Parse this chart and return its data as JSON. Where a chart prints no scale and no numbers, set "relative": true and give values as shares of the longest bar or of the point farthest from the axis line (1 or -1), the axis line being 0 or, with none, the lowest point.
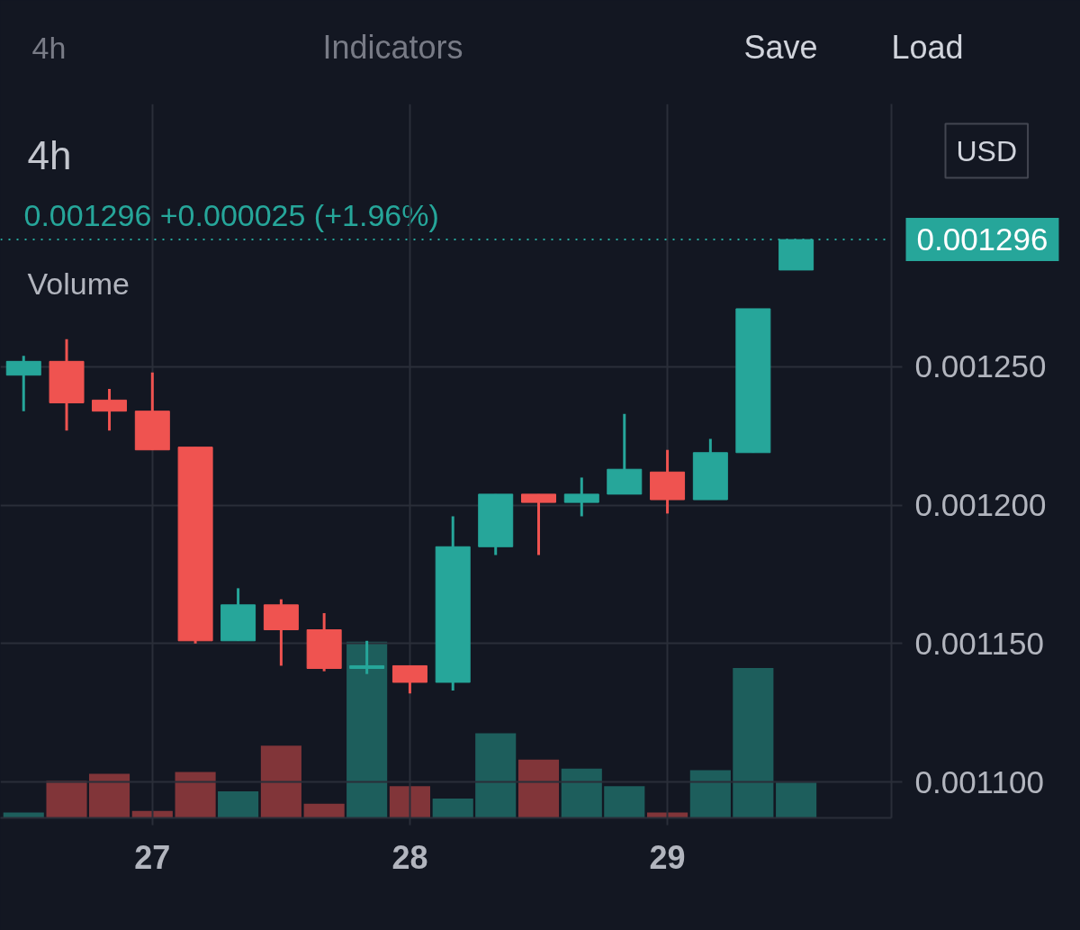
{
  "chart_data": [
    {
      "type": "candlestick",
      "title": "4h",
      "subtitle": "0.001296 +0.000025 (+1.96%)",
      "annotations": [
        "4h",
        "Indicators",
        "Save",
        "Load",
        "USD"
      ],
      "x": [
        26.5,
        26.667,
        26.833,
        27,
        27.167,
        27.333,
        27.5,
        27.667,
        27.833,
        28,
        28.167,
        28.333,
        28.5,
        28.667,
        28.833,
        29,
        29.167,
        29.333,
        29.5
      ],
      "ohlc": [
        [
          0.001247,
          0.001254,
          0.001234,
          0.001252
        ],
        [
          0.001252,
          0.00126,
          0.001227,
          0.001237
        ],
        [
          0.001238,
          0.001242,
          0.001227,
          0.001234
        ],
        [
          0.001234,
          0.001248,
          0.00122,
          0.00122
        ],
        [
          0.001221,
          0.001221,
          0.00115,
          0.001151
        ],
        [
          0.001151,
          0.00117,
          0.001151,
          0.001164
        ],
        [
          0.001164,
          0.001166,
          0.001142,
          0.001155
        ],
        [
          0.001155,
          0.001161,
          0.00114,
          0.001141
        ],
        [
          0.001141,
          0.001151,
          0.001139,
          0.001142
        ],
        [
          0.001142,
          0.001142,
          0.001132,
          0.001136
        ],
        [
          0.001136,
          0.001196,
          0.001133,
          0.001185
        ],
        [
          0.001185,
          0.001204,
          0.001182,
          0.001204
        ],
        [
          0.001204,
          0.001204,
          0.001182,
          0.001201
        ],
        [
          0.001201,
          0.00121,
          0.001196,
          0.001204
        ],
        [
          0.001204,
          0.001233,
          0.001204,
          0.001213
        ],
        [
          0.001212,
          0.00122,
          0.001197,
          0.001202
        ],
        [
          0.001202,
          0.001224,
          0.001202,
          0.001219
        ],
        [
          0.001219,
          0.001271,
          0.001219,
          0.001271
        ],
        [
          0.001285,
          0.001296,
          0.001285,
          0.001296
        ]
      ],
      "colors": [
        "#26a69a",
        "#ef5350",
        "#ef5350",
        "#ef5350",
        "#ef5350",
        "#26a69a",
        "#ef5350",
        "#ef5350",
        "#26a69a",
        "#ef5350",
        "#26a69a",
        "#26a69a",
        "#ef5350",
        "#26a69a",
        "#26a69a",
        "#ef5350",
        "#26a69a",
        "#26a69a",
        "#26a69a"
      ],
      "ref_lines": [
        {
          "axis": "y",
          "value": 0.001296,
          "label": "0.001296",
          "color": "#26a69a",
          "line_style": "dotted"
        }
      ],
      "xlim": [
        26.41,
        29.87
      ],
      "ylim": [
        0.001087,
        0.001345
      ],
      "xticks": [
        27,
        28,
        29
      ],
      "yticks": [
        {
          "value": 0.0011,
          "label": "0.001100"
        },
        {
          "value": 0.00115,
          "label": "0.001150"
        },
        {
          "value": 0.0012,
          "label": "0.001200"
        },
        {
          "value": 0.00125,
          "label": "0.001250"
        }
      ],
      "grid": true
    },
    {
      "type": "bar",
      "title": "Volume",
      "relative": true,
      "x": [
        26.5,
        26.667,
        26.833,
        27,
        27.167,
        27.333,
        27.5,
        27.667,
        27.833,
        28,
        28.167,
        28.333,
        28.5,
        28.667,
        28.833,
        29,
        29.167,
        29.333,
        29.5
      ],
      "values": [
        0.03,
        0.21,
        0.25,
        0.04,
        0.26,
        0.15,
        0.41,
        0.08,
        1,
        0.18,
        0.11,
        0.48,
        0.33,
        0.28,
        0.18,
        0.03,
        0.27,
        0.85,
        0.2
      ],
      "colors": [
        "#1d5e5c",
        "#813539",
        "#813539",
        "#813539",
        "#813539",
        "#1d5e5c",
        "#813539",
        "#813539",
        "#1d5e5c",
        "#813539",
        "#1d5e5c",
        "#1d5e5c",
        "#813539",
        "#1d5e5c",
        "#1d5e5c",
        "#813539",
        "#1d5e5c",
        "#1d5e5c",
        "#1d5e5c"
      ],
      "xlim": [
        26.41,
        29.87
      ],
      "tick_labels": false
    }
  ]
}
